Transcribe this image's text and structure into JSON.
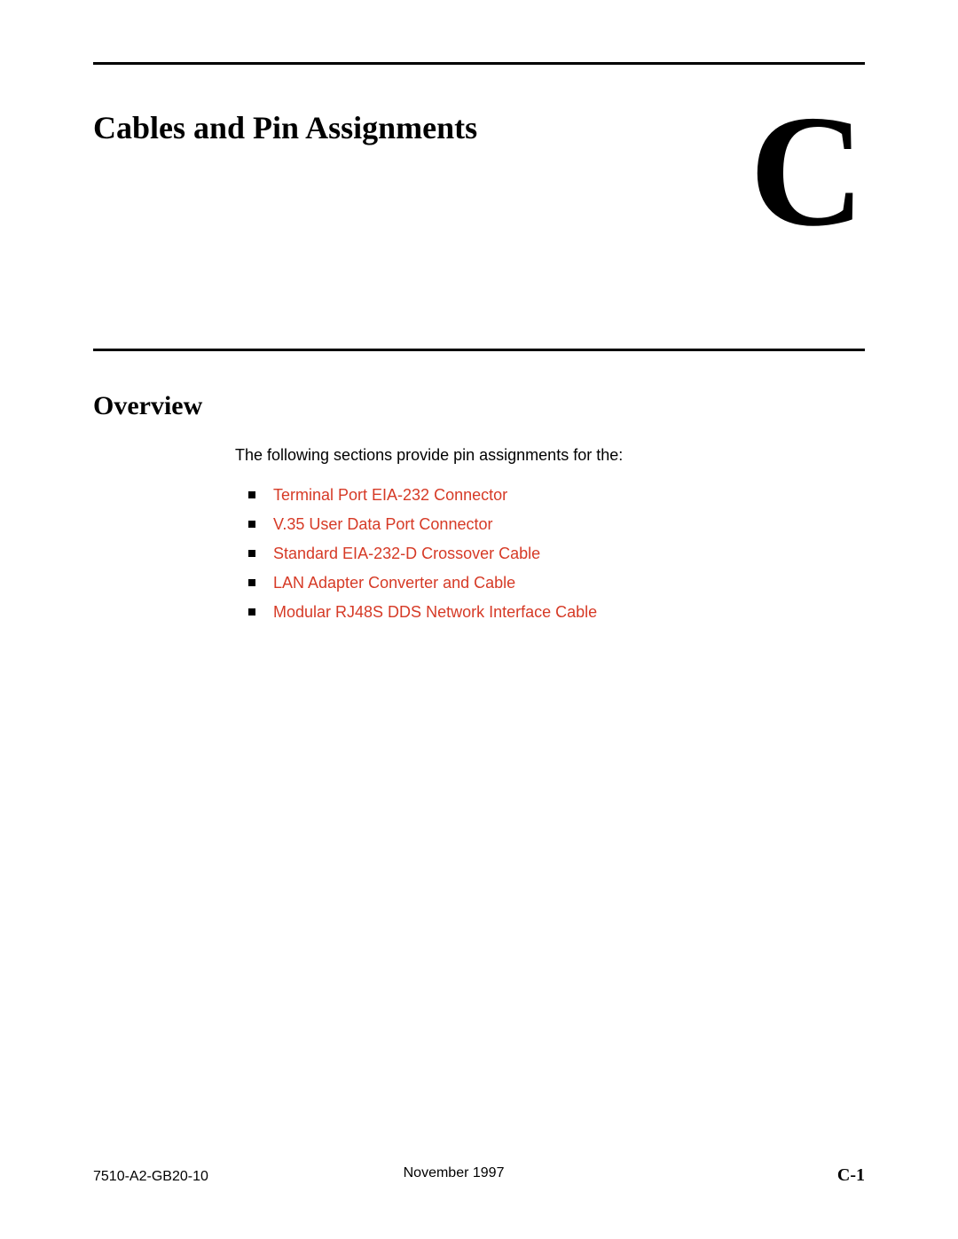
{
  "chapter": {
    "title": "Cables and Pin Assignments",
    "letter": "C"
  },
  "section": {
    "title": "Overview",
    "intro": "The following sections provide pin assignments for the:"
  },
  "links": [
    "Terminal Port EIA-232 Connector",
    "V.35 User Data Port Connector",
    "Standard EIA-232-D Crossover Cable",
    "LAN Adapter Converter and Cable",
    "Modular RJ48S DDS Network Interface Cable"
  ],
  "footer": {
    "left": "7510-A2-GB20-10",
    "center": "November 1997",
    "right": "C-1"
  },
  "colors": {
    "link": "#d63a26",
    "text": "#000000",
    "background": "#ffffff"
  }
}
